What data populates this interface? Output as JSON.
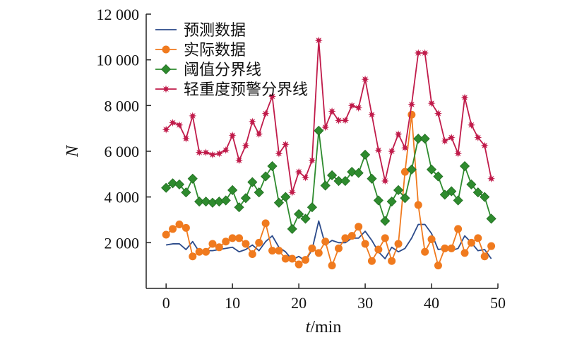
{
  "chart_data": {
    "type": "line",
    "xlabel_var": "t",
    "xlabel_unit": "/min",
    "ylabel": "N",
    "xlim": [
      -3,
      50
    ],
    "ylim": [
      0,
      12000
    ],
    "xticks": [
      0,
      10,
      20,
      30,
      40,
      50
    ],
    "yticks": [
      2000,
      4000,
      6000,
      8000,
      10000,
      12000
    ],
    "xtick_labels": [
      "0",
      "10",
      "20",
      "30",
      "40",
      "50"
    ],
    "ytick_labels": [
      "2 000",
      "4 000",
      "6 000",
      "8 000",
      "10 000",
      "12 000"
    ],
    "grid": false,
    "legend_position": "top-left",
    "x": [
      0,
      1,
      2,
      3,
      4,
      5,
      6,
      7,
      8,
      9,
      10,
      11,
      12,
      13,
      14,
      15,
      16,
      17,
      18,
      19,
      20,
      21,
      22,
      23,
      24,
      25,
      26,
      27,
      28,
      29,
      30,
      31,
      32,
      33,
      34,
      35,
      36,
      37,
      38,
      39,
      40,
      41,
      42,
      43,
      44,
      45,
      46,
      47,
      48,
      49
    ],
    "series": [
      {
        "name": "预测数据",
        "color": "#2b4a8a",
        "marker": "none",
        "values": [
          1900,
          1950,
          1950,
          1700,
          2050,
          1600,
          1650,
          1650,
          1700,
          1750,
          1800,
          1600,
          1700,
          1900,
          1650,
          2050,
          2300,
          1800,
          1600,
          1250,
          1400,
          1200,
          1700,
          2950,
          1900,
          2100,
          2000,
          2000,
          2200,
          2200,
          2500,
          2100,
          1600,
          1300,
          1800,
          1600,
          1750,
          2200,
          2800,
          2800,
          2400,
          1700,
          1750,
          1650,
          1750,
          2300,
          2000,
          1650,
          1700,
          1300
        ]
      },
      {
        "name": "实际数据",
        "color": "#f07a1e",
        "marker": "circle",
        "values": [
          2350,
          2600,
          2800,
          2650,
          1400,
          1600,
          1600,
          1950,
          1800,
          2050,
          2200,
          2200,
          1950,
          1500,
          2000,
          2850,
          1650,
          1650,
          1300,
          1300,
          1050,
          1250,
          1750,
          1550,
          2050,
          1000,
          1750,
          2200,
          2300,
          2700,
          1950,
          1200,
          1700,
          2200,
          1200,
          1950,
          5100,
          7600,
          3650,
          1600,
          2150,
          1000,
          1750,
          1750,
          2600,
          1550,
          2000,
          2200,
          1400,
          1850
        ]
      },
      {
        "name": "阈值分界线",
        "color": "#2e8b2e",
        "marker": "diamond",
        "values": [
          4400,
          4600,
          4550,
          4200,
          4800,
          3800,
          3800,
          3750,
          3800,
          3850,
          4300,
          3550,
          3950,
          4650,
          4200,
          4900,
          5350,
          3750,
          4000,
          2600,
          3250,
          3050,
          3550,
          6900,
          4500,
          4950,
          4700,
          4700,
          5100,
          5050,
          5850,
          4800,
          3850,
          2950,
          3800,
          4300,
          3950,
          5200,
          6550,
          6550,
          5200,
          4900,
          4100,
          4250,
          3850,
          5350,
          4550,
          4200,
          4000,
          3050
        ]
      },
      {
        "name": "轻重度预警分界线",
        "color": "#c01b4a",
        "marker": "star",
        "values": [
          6950,
          7250,
          7150,
          6550,
          7550,
          5950,
          5950,
          5850,
          5900,
          6050,
          6700,
          5600,
          6250,
          7300,
          6750,
          7650,
          8400,
          5900,
          6300,
          4200,
          5100,
          4850,
          5600,
          10850,
          7050,
          7750,
          7350,
          7350,
          8000,
          7900,
          9150,
          7600,
          6050,
          4700,
          6000,
          6750,
          6150,
          8050,
          10300,
          10300,
          8100,
          7650,
          6450,
          6600,
          5900,
          8350,
          7150,
          6600,
          6250,
          4800
        ]
      }
    ]
  }
}
